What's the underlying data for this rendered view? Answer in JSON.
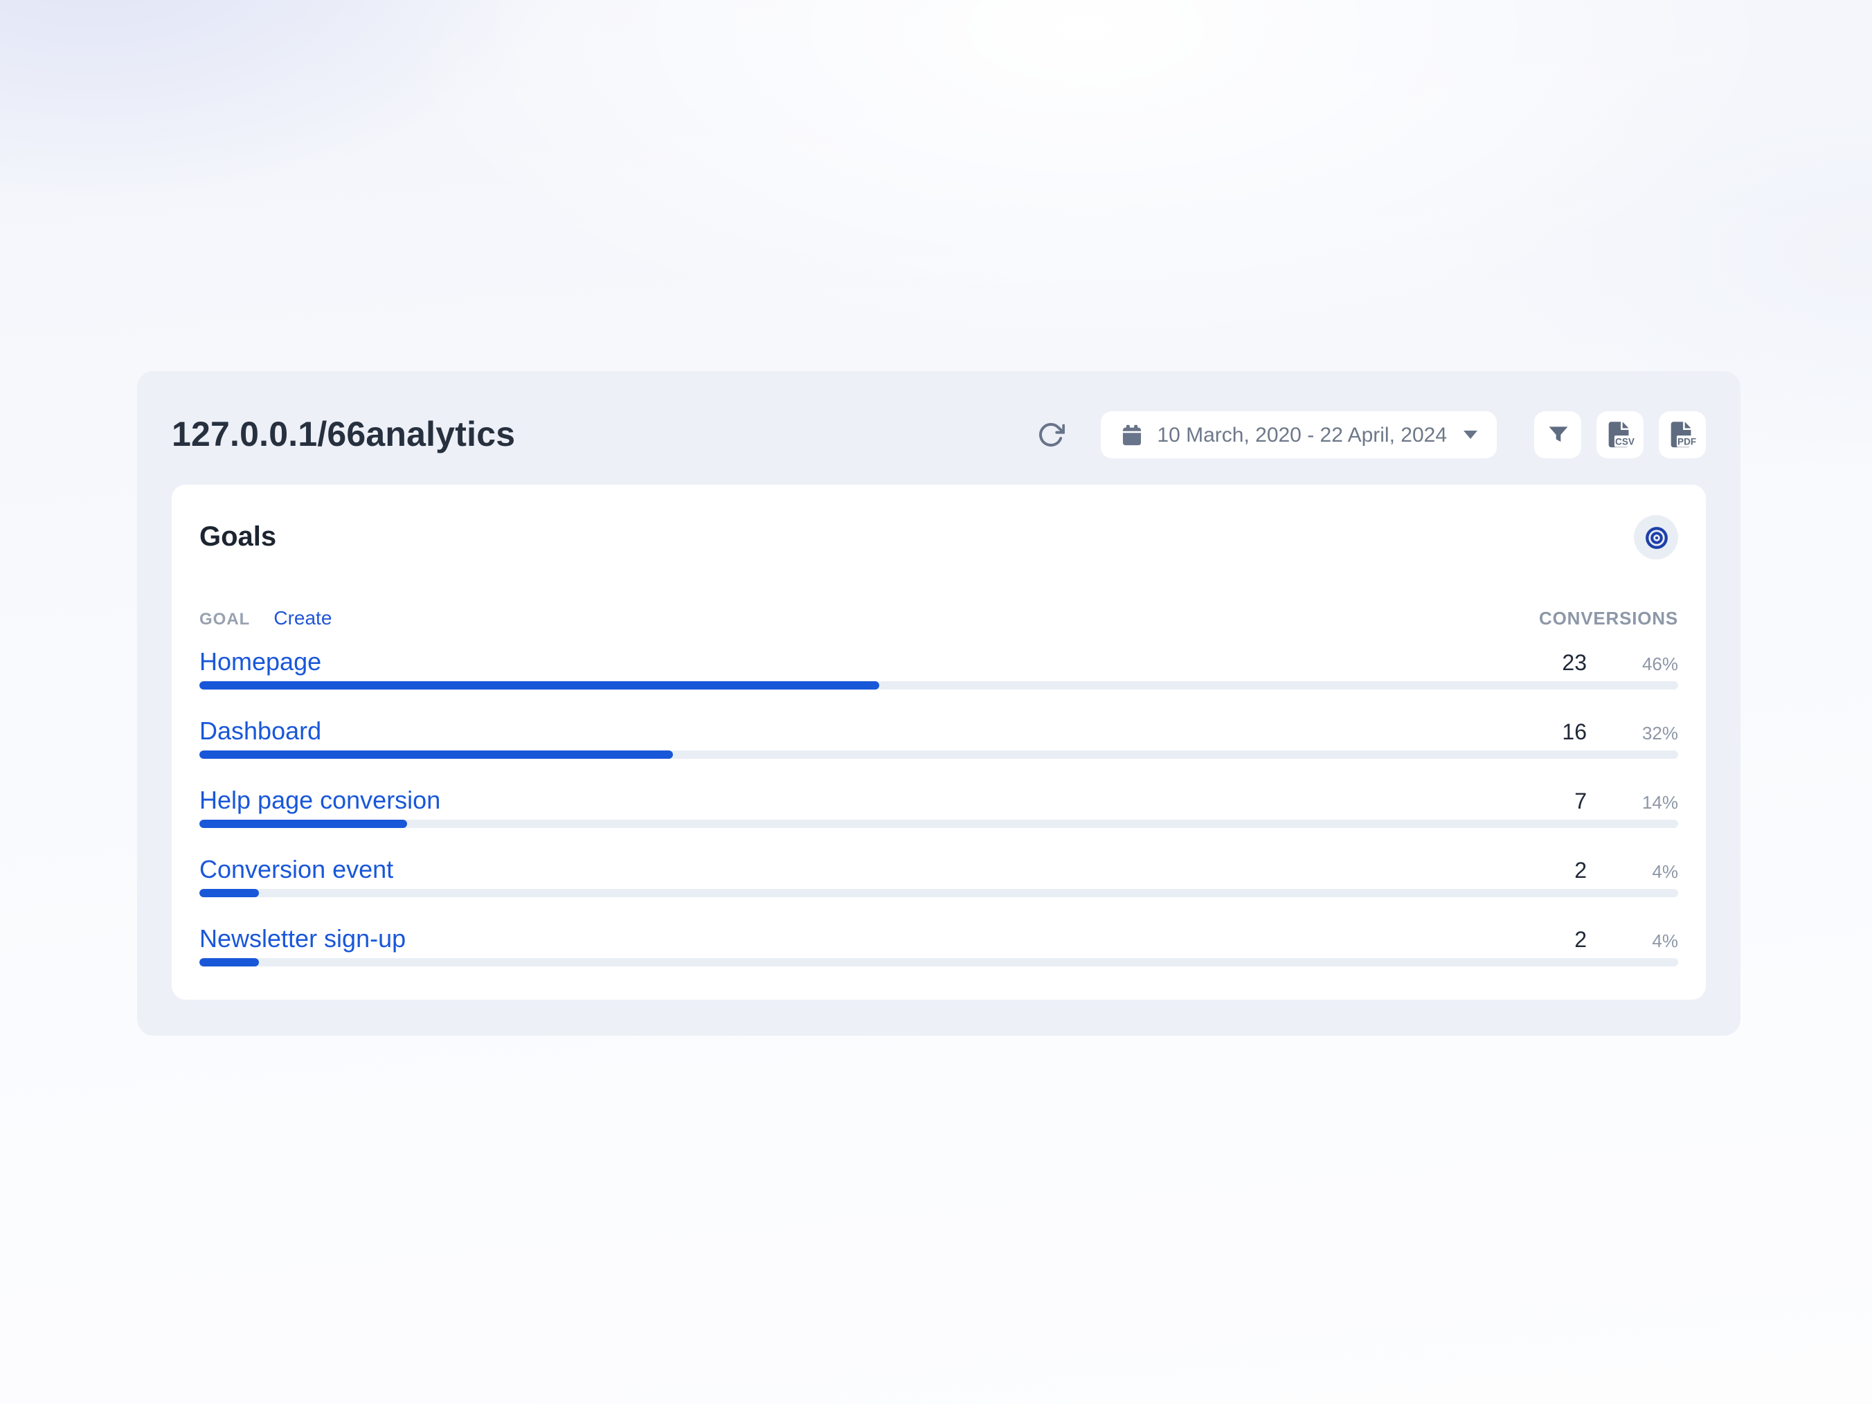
{
  "colors": {
    "accent": "#1957d9",
    "bar_track": "#e9eef5",
    "icon_slate": "#68748a",
    "title_text": "#27303e",
    "muted": "#8d97a7",
    "target_icon": "#1c3fa9"
  },
  "page": {
    "title": "127.0.0.1/66analytics"
  },
  "toolbar": {
    "date_range": "10 March, 2020 - 22 April, 2024",
    "csv_label": "CSV",
    "pdf_label": "PDF"
  },
  "goals_card": {
    "title": "Goals",
    "goal_column": "GOAL",
    "create_label": "Create",
    "conversions_column": "CONVERSIONS",
    "rows": [
      {
        "name": "Homepage",
        "conversions": "23",
        "percent": "46%",
        "bar_percent": 46
      },
      {
        "name": "Dashboard",
        "conversions": "16",
        "percent": "32%",
        "bar_percent": 32
      },
      {
        "name": "Help page conversion",
        "conversions": "7",
        "percent": "14%",
        "bar_percent": 14
      },
      {
        "name": "Conversion event",
        "conversions": "2",
        "percent": "4%",
        "bar_percent": 4
      },
      {
        "name": "Newsletter sign-up",
        "conversions": "2",
        "percent": "4%",
        "bar_percent": 4
      }
    ]
  }
}
